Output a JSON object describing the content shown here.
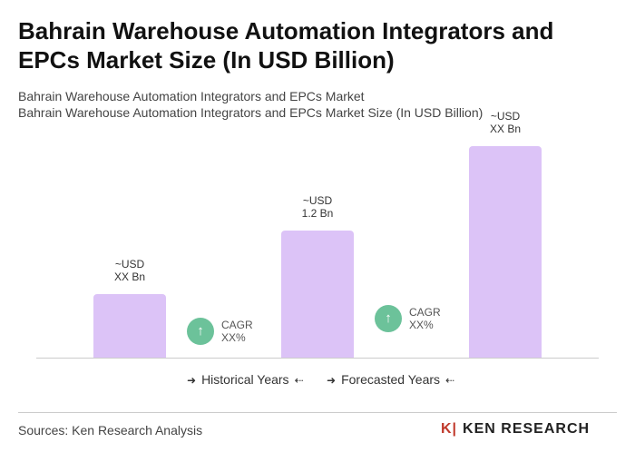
{
  "chart_data": {
    "type": "bar",
    "title": "Bahrain Warehouse Automation Integrators and EPCs Market Size (In USD Billion)",
    "subtitle": [
      "Bahrain Warehouse Automation Integrators and EPCs Market",
      "Bahrain Warehouse Automation Integrators and EPCs Market Size (In USD Billion)"
    ],
    "categories": [
      null,
      null,
      null
    ],
    "values": [
      0.6,
      1.2,
      2.0
    ],
    "value_labels": [
      "~USD XX Bn",
      "~USD 1.2 Bn",
      "~USD XX Bn"
    ],
    "color": "#dcc3f7",
    "ylim": [
      0,
      2
    ],
    "annotations": [
      "CAGR XX%",
      "CAGR XX%"
    ],
    "periods": [
      "Historical Years",
      "Forecasted Years"
    ]
  },
  "source": "Sources: Ken Research Analysis",
  "logo": "KEN RESEARCH"
}
